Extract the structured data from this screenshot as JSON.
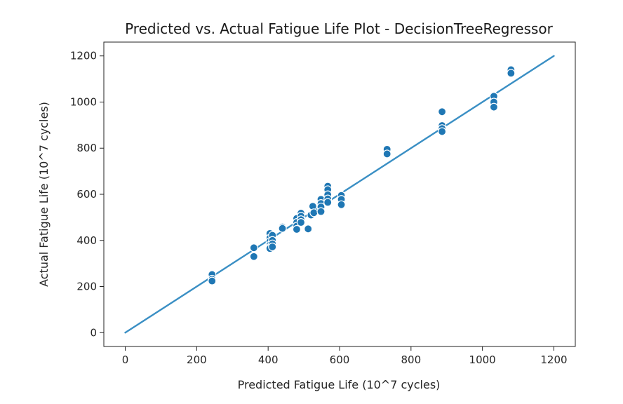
{
  "chart_data": {
    "type": "scatter",
    "title": "Predicted vs. Actual Fatigue Life Plot - DecisionTreeRegressor",
    "xlabel": "Predicted Fatigue Life (10^7 cycles)",
    "ylabel": "Actual Fatigue Life (10^7 cycles)",
    "xlim": [
      -60,
      1260
    ],
    "ylim": [
      -60,
      1260
    ],
    "xticks": [
      0,
      200,
      400,
      600,
      800,
      1000,
      1200
    ],
    "yticks": [
      0,
      200,
      400,
      600,
      800,
      1000,
      1200
    ],
    "grid": false,
    "colors": {
      "points": "#1f77b4",
      "line": "#3a8fc4"
    },
    "reference_line": {
      "x": [
        0,
        1200
      ],
      "y": [
        0,
        1200
      ]
    },
    "series": [
      {
        "points": [
          {
            "x": 243,
            "y": 252
          },
          {
            "x": 243,
            "y": 232
          },
          {
            "x": 243,
            "y": 224
          },
          {
            "x": 360,
            "y": 368
          },
          {
            "x": 360,
            "y": 330
          },
          {
            "x": 405,
            "y": 430
          },
          {
            "x": 405,
            "y": 410
          },
          {
            "x": 405,
            "y": 395
          },
          {
            "x": 405,
            "y": 380
          },
          {
            "x": 405,
            "y": 370
          },
          {
            "x": 405,
            "y": 365
          },
          {
            "x": 412,
            "y": 422
          },
          {
            "x": 412,
            "y": 400
          },
          {
            "x": 412,
            "y": 385
          },
          {
            "x": 412,
            "y": 372
          },
          {
            "x": 440,
            "y": 458
          },
          {
            "x": 440,
            "y": 452
          },
          {
            "x": 480,
            "y": 495
          },
          {
            "x": 480,
            "y": 478
          },
          {
            "x": 480,
            "y": 462
          },
          {
            "x": 480,
            "y": 448
          },
          {
            "x": 492,
            "y": 518
          },
          {
            "x": 492,
            "y": 505
          },
          {
            "x": 492,
            "y": 490
          },
          {
            "x": 492,
            "y": 478
          },
          {
            "x": 512,
            "y": 450
          },
          {
            "x": 520,
            "y": 510
          },
          {
            "x": 525,
            "y": 548
          },
          {
            "x": 528,
            "y": 520
          },
          {
            "x": 548,
            "y": 578
          },
          {
            "x": 548,
            "y": 560
          },
          {
            "x": 548,
            "y": 545
          },
          {
            "x": 548,
            "y": 525
          },
          {
            "x": 567,
            "y": 635
          },
          {
            "x": 567,
            "y": 620
          },
          {
            "x": 567,
            "y": 598
          },
          {
            "x": 567,
            "y": 580
          },
          {
            "x": 567,
            "y": 565
          },
          {
            "x": 605,
            "y": 595
          },
          {
            "x": 605,
            "y": 578
          },
          {
            "x": 605,
            "y": 555
          },
          {
            "x": 733,
            "y": 795
          },
          {
            "x": 733,
            "y": 775
          },
          {
            "x": 887,
            "y": 958
          },
          {
            "x": 887,
            "y": 898
          },
          {
            "x": 887,
            "y": 885
          },
          {
            "x": 887,
            "y": 872
          },
          {
            "x": 1032,
            "y": 1025
          },
          {
            "x": 1032,
            "y": 1000
          },
          {
            "x": 1032,
            "y": 978
          },
          {
            "x": 1080,
            "y": 1140
          },
          {
            "x": 1080,
            "y": 1125
          }
        ]
      }
    ]
  }
}
